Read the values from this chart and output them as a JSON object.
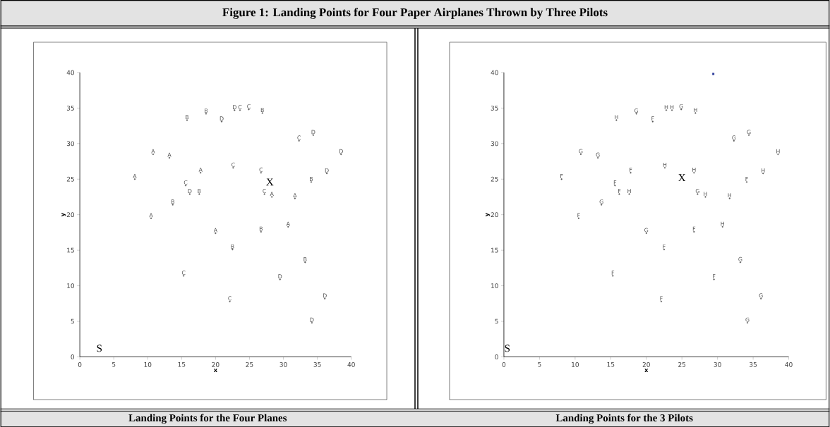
{
  "chart_data": [
    {
      "type": "scatter",
      "title": "Figure 1:  Landing Points for Four Paper Airplanes Thrown by Three Pilots",
      "subtitle": "Landing Points for the Four Planes",
      "xlabel": "x",
      "ylabel": "y",
      "xlim": [
        0,
        40
      ],
      "ylim": [
        0,
        40
      ],
      "xticks": [
        0,
        5,
        10,
        15,
        20,
        25,
        30,
        35,
        40
      ],
      "yticks": [
        0,
        5,
        10,
        15,
        20,
        25,
        30,
        35,
        40
      ],
      "grid": false,
      "series": [
        {
          "name": "A",
          "color": "#555555",
          "x": [
            10.8,
            13.2,
            8.1,
            17.8,
            28.3,
            31.7,
            10.5,
            20.0,
            30.7
          ],
          "values": [
            28.5,
            28.0,
            25.0,
            25.9,
            22.5,
            22.3,
            19.5,
            17.4,
            18.3
          ]
        },
        {
          "name": "B",
          "color": "#595959",
          "x": [
            15.8,
            18.6,
            26.9,
            17.6,
            13.7,
            34.1,
            26.7,
            22.5,
            33.2
          ],
          "values": [
            33.3,
            34.2,
            34.3,
            22.9,
            21.4,
            24.6,
            17.6,
            15.1,
            13.3
          ]
        },
        {
          "name": "C",
          "color": "#5d5d5d",
          "x": [
            23.6,
            24.9,
            32.3,
            22.6,
            26.7,
            15.6,
            27.2,
            15.3,
            22.1
          ],
          "values": [
            34.7,
            34.8,
            30.4,
            26.6,
            25.9,
            24.1,
            22.9,
            11.4,
            7.8
          ]
        },
        {
          "name": "D",
          "color": "#515151",
          "x": [
            22.8,
            20.9,
            34.4,
            38.5,
            36.4,
            16.2,
            29.5,
            36.1,
            34.2
          ],
          "values": [
            34.7,
            33.1,
            31.2,
            28.5,
            25.8,
            22.9,
            10.9,
            8.2,
            4.8
          ]
        }
      ],
      "annotations": [
        "X",
        "S"
      ]
    },
    {
      "type": "scatter",
      "subtitle": "Landing Points for the 3 Pilots",
      "xlabel": "x",
      "ylabel": "y",
      "xlim": [
        0,
        40
      ],
      "ylim": [
        0,
        40
      ],
      "xticks": [
        0,
        5,
        10,
        15,
        20,
        25,
        30,
        35,
        40
      ],
      "yticks": [
        0,
        5,
        10,
        15,
        20,
        25,
        30,
        35,
        40
      ],
      "grid": false,
      "series": [
        {
          "name": "F",
          "color": "#555555",
          "x": [
            8.1,
            17.8,
            34.1,
            15.6,
            16.2,
            10.5,
            26.7,
            22.5,
            15.3,
            29.5,
            22.1,
            20.9
          ],
          "values": [
            25.0,
            25.9,
            24.6,
            24.1,
            22.9,
            19.5,
            17.6,
            15.1,
            11.4,
            10.9,
            7.8,
            33.1
          ]
        },
        {
          "name": "G",
          "color": "#595959",
          "x": [
            18.6,
            24.9,
            32.3,
            34.4,
            10.8,
            13.2,
            27.2,
            13.7,
            20.0,
            33.2,
            36.1,
            34.2
          ],
          "values": [
            34.2,
            34.8,
            30.4,
            31.2,
            28.5,
            28.0,
            22.9,
            21.4,
            17.4,
            13.3,
            8.2,
            4.8
          ]
        },
        {
          "name": "H",
          "color": "#5d5d5d",
          "x": [
            15.8,
            22.8,
            23.6,
            26.9,
            38.5,
            22.6,
            26.7,
            36.4,
            17.6,
            28.3,
            31.7,
            30.7
          ],
          "values": [
            33.3,
            34.7,
            34.7,
            34.3,
            28.5,
            26.6,
            25.9,
            25.8,
            22.9,
            22.5,
            22.3,
            18.3
          ]
        },
        {
          "color": "#2b3a9a",
          "marker": "square",
          "x": [
            29.4
          ],
          "values": [
            39.8
          ]
        }
      ],
      "annotations": [
        "X",
        "S"
      ]
    }
  ]
}
